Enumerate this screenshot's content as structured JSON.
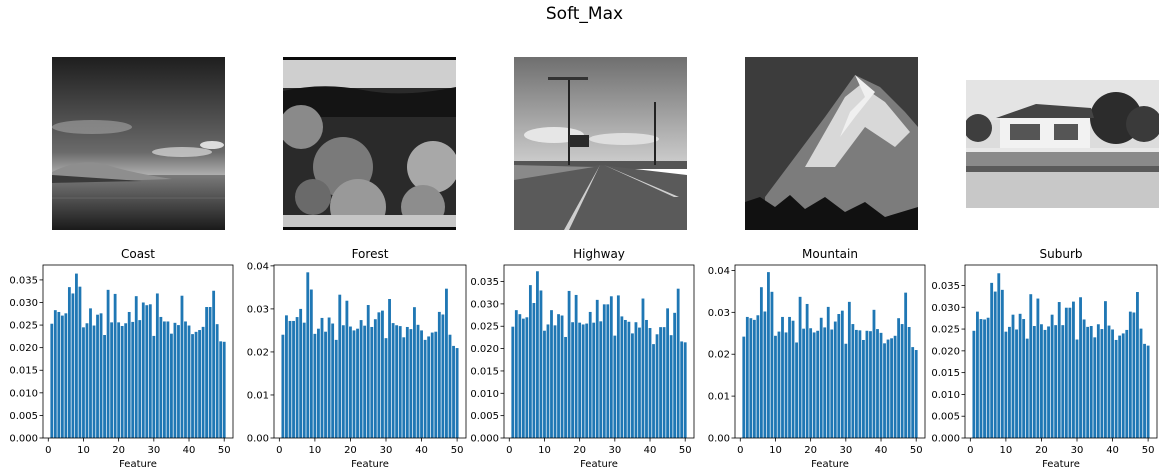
{
  "figure_title": "Soft_Max",
  "images": [
    {
      "name": "coast-photo",
      "caption": ""
    },
    {
      "name": "forest-photo",
      "caption": ""
    },
    {
      "name": "highway-photo",
      "caption": ""
    },
    {
      "name": "mountain-photo",
      "caption": ""
    },
    {
      "name": "suburb-photo",
      "caption": ""
    }
  ],
  "chart_data": [
    {
      "type": "bar",
      "title": "Coast",
      "xlabel": "Feature",
      "ylabel": "",
      "x": [
        1,
        2,
        3,
        4,
        5,
        6,
        7,
        8,
        9,
        10,
        11,
        12,
        13,
        14,
        15,
        16,
        17,
        18,
        19,
        20,
        21,
        22,
        23,
        24,
        25,
        26,
        27,
        28,
        29,
        30,
        31,
        32,
        33,
        34,
        35,
        36,
        37,
        38,
        39,
        40,
        41,
        42,
        43,
        44,
        45,
        46,
        47,
        48,
        49,
        50
      ],
      "values": [
        0.0253,
        0.0283,
        0.0279,
        0.0271,
        0.0276,
        0.0334,
        0.032,
        0.0364,
        0.0335,
        0.0245,
        0.0254,
        0.0287,
        0.0249,
        0.0273,
        0.0276,
        0.0228,
        0.0328,
        0.0256,
        0.0319,
        0.0256,
        0.0248,
        0.0254,
        0.0279,
        0.0257,
        0.0314,
        0.0261,
        0.03,
        0.0294,
        0.0296,
        0.0226,
        0.032,
        0.0268,
        0.0258,
        0.0258,
        0.0231,
        0.0255,
        0.025,
        0.0315,
        0.0258,
        0.0249,
        0.023,
        0.0235,
        0.0239,
        0.0246,
        0.029,
        0.029,
        0.0326,
        0.0252,
        0.0214,
        0.0213
      ],
      "xlim": [
        -1.5,
        52.5
      ],
      "ylim": [
        0,
        0.0383
      ],
      "xticks": [
        0,
        10,
        20,
        30,
        40,
        50
      ],
      "yticks": [
        0.0,
        0.005,
        0.01,
        0.015,
        0.02,
        0.025,
        0.03,
        0.035
      ],
      "ytick_labels": [
        "0.000",
        "0.005",
        "0.010",
        "0.015",
        "0.020",
        "0.025",
        "0.030",
        "0.035"
      ],
      "color": "#1f77b4",
      "grid": false
    },
    {
      "type": "bar",
      "title": "Forest",
      "xlabel": "Feature",
      "ylabel": "",
      "x": [
        1,
        2,
        3,
        4,
        5,
        6,
        7,
        8,
        9,
        10,
        11,
        12,
        13,
        14,
        15,
        16,
        17,
        18,
        19,
        20,
        21,
        22,
        23,
        24,
        25,
        26,
        27,
        28,
        29,
        30,
        31,
        32,
        33,
        34,
        35,
        36,
        37,
        38,
        39,
        40,
        41,
        42,
        43,
        44,
        45,
        46,
        47,
        48,
        49,
        50
      ],
      "values": [
        0.024,
        0.0285,
        0.0272,
        0.0272,
        0.0281,
        0.03,
        0.0268,
        0.0385,
        0.0345,
        0.0242,
        0.0254,
        0.0279,
        0.0247,
        0.028,
        0.0266,
        0.0228,
        0.0333,
        0.0262,
        0.0319,
        0.0259,
        0.025,
        0.0254,
        0.0274,
        0.0261,
        0.0309,
        0.0258,
        0.0276,
        0.0292,
        0.0296,
        0.0232,
        0.0323,
        0.0267,
        0.0262,
        0.026,
        0.0234,
        0.0258,
        0.0253,
        0.0304,
        0.0263,
        0.025,
        0.0228,
        0.0236,
        0.0245,
        0.0247,
        0.0293,
        0.0287,
        0.0347,
        0.024,
        0.0214,
        0.0209
      ],
      "xlim": [
        -1.5,
        52.5
      ],
      "ylim": [
        0,
        0.0402
      ],
      "xticks": [
        0,
        10,
        20,
        30,
        40,
        50
      ],
      "yticks": [
        0.0,
        0.01,
        0.02,
        0.03,
        0.04
      ],
      "ytick_labels": [
        "0.00",
        "0.01",
        "0.02",
        "0.03",
        "0.04"
      ],
      "color": "#1f77b4",
      "grid": false
    },
    {
      "type": "bar",
      "title": "Highway",
      "xlabel": "Feature",
      "ylabel": "",
      "x": [
        1,
        2,
        3,
        4,
        5,
        6,
        7,
        8,
        9,
        10,
        11,
        12,
        13,
        14,
        15,
        16,
        17,
        18,
        19,
        20,
        21,
        22,
        23,
        24,
        25,
        26,
        27,
        28,
        29,
        30,
        31,
        32,
        33,
        34,
        35,
        36,
        37,
        38,
        39,
        40,
        41,
        42,
        43,
        44,
        45,
        46,
        47,
        48,
        49,
        50
      ],
      "values": [
        0.0249,
        0.0286,
        0.0277,
        0.0267,
        0.027,
        0.0342,
        0.0302,
        0.0373,
        0.033,
        0.024,
        0.0254,
        0.0286,
        0.0252,
        0.0277,
        0.0274,
        0.0226,
        0.0329,
        0.0259,
        0.032,
        0.0258,
        0.0254,
        0.0256,
        0.0282,
        0.0258,
        0.0309,
        0.0261,
        0.0299,
        0.0299,
        0.0317,
        0.0229,
        0.0319,
        0.0272,
        0.0264,
        0.026,
        0.0234,
        0.0259,
        0.0247,
        0.0312,
        0.0264,
        0.0246,
        0.021,
        0.0232,
        0.0248,
        0.0248,
        0.029,
        0.023,
        0.028,
        0.0334,
        0.0216,
        0.0214
      ],
      "xlim": [
        -1.5,
        52.5
      ],
      "ylim": [
        0,
        0.0387
      ],
      "xticks": [
        0,
        10,
        20,
        30,
        40,
        50
      ],
      "yticks": [
        0.0,
        0.005,
        0.01,
        0.015,
        0.02,
        0.025,
        0.03,
        0.035
      ],
      "ytick_labels": [
        "0.000",
        "0.005",
        "0.010",
        "0.015",
        "0.020",
        "0.025",
        "0.030",
        "0.035"
      ],
      "color": "#1f77b4",
      "grid": false
    },
    {
      "type": "bar",
      "title": "Mountain",
      "xlabel": "Feature",
      "ylabel": "",
      "x": [
        1,
        2,
        3,
        4,
        5,
        6,
        7,
        8,
        9,
        10,
        11,
        12,
        13,
        14,
        15,
        16,
        17,
        18,
        19,
        20,
        21,
        22,
        23,
        24,
        25,
        26,
        27,
        28,
        29,
        30,
        31,
        32,
        33,
        34,
        35,
        36,
        37,
        38,
        39,
        40,
        41,
        42,
        43,
        44,
        45,
        46,
        47,
        48,
        49,
        50
      ],
      "values": [
        0.0242,
        0.0289,
        0.0286,
        0.0282,
        0.0293,
        0.036,
        0.0302,
        0.0396,
        0.0349,
        0.0244,
        0.0254,
        0.0289,
        0.0252,
        0.0289,
        0.028,
        0.0228,
        0.0337,
        0.0261,
        0.032,
        0.0262,
        0.0252,
        0.0256,
        0.0287,
        0.0264,
        0.0313,
        0.0259,
        0.0278,
        0.0296,
        0.0304,
        0.0225,
        0.0325,
        0.0272,
        0.0258,
        0.0257,
        0.0234,
        0.0256,
        0.0255,
        0.0306,
        0.026,
        0.0251,
        0.0226,
        0.0235,
        0.0238,
        0.0244,
        0.0286,
        0.0272,
        0.0347,
        0.0265,
        0.0217,
        0.021
      ],
      "xlim": [
        -1.5,
        52.5
      ],
      "ylim": [
        0,
        0.0413
      ],
      "xticks": [
        0,
        10,
        20,
        30,
        40,
        50
      ],
      "yticks": [
        0.0,
        0.01,
        0.02,
        0.03,
        0.04
      ],
      "ytick_labels": [
        "0.00",
        "0.01",
        "0.02",
        "0.03",
        "0.04"
      ],
      "color": "#1f77b4",
      "grid": false
    },
    {
      "type": "bar",
      "title": "Suburb",
      "xlabel": "Feature",
      "ylabel": "",
      "x": [
        1,
        2,
        3,
        4,
        5,
        6,
        7,
        8,
        9,
        10,
        11,
        12,
        13,
        14,
        15,
        16,
        17,
        18,
        19,
        20,
        21,
        22,
        23,
        24,
        25,
        26,
        27,
        28,
        29,
        30,
        31,
        32,
        33,
        34,
        35,
        36,
        37,
        38,
        39,
        40,
        41,
        42,
        43,
        44,
        45,
        46,
        47,
        48,
        49,
        50
      ],
      "values": [
        0.0246,
        0.029,
        0.0273,
        0.0272,
        0.0276,
        0.0356,
        0.0336,
        0.0378,
        0.034,
        0.0244,
        0.0255,
        0.0283,
        0.0249,
        0.0285,
        0.0273,
        0.0228,
        0.033,
        0.0257,
        0.032,
        0.0261,
        0.0248,
        0.0256,
        0.0283,
        0.0259,
        0.0312,
        0.0259,
        0.0299,
        0.0299,
        0.0313,
        0.0226,
        0.0323,
        0.0272,
        0.0255,
        0.0257,
        0.0231,
        0.0261,
        0.025,
        0.0314,
        0.0258,
        0.0249,
        0.0225,
        0.0235,
        0.024,
        0.0248,
        0.029,
        0.0288,
        0.0335,
        0.0251,
        0.0216,
        0.0212
      ],
      "xlim": [
        -1.5,
        52.5
      ],
      "ylim": [
        0,
        0.0397
      ],
      "xticks": [
        0,
        10,
        20,
        30,
        40,
        50
      ],
      "yticks": [
        0.0,
        0.005,
        0.01,
        0.015,
        0.02,
        0.025,
        0.03,
        0.035
      ],
      "ytick_labels": [
        "0.000",
        "0.005",
        "0.010",
        "0.015",
        "0.020",
        "0.025",
        "0.030",
        "0.035"
      ],
      "color": "#1f77b4",
      "grid": false
    }
  ]
}
